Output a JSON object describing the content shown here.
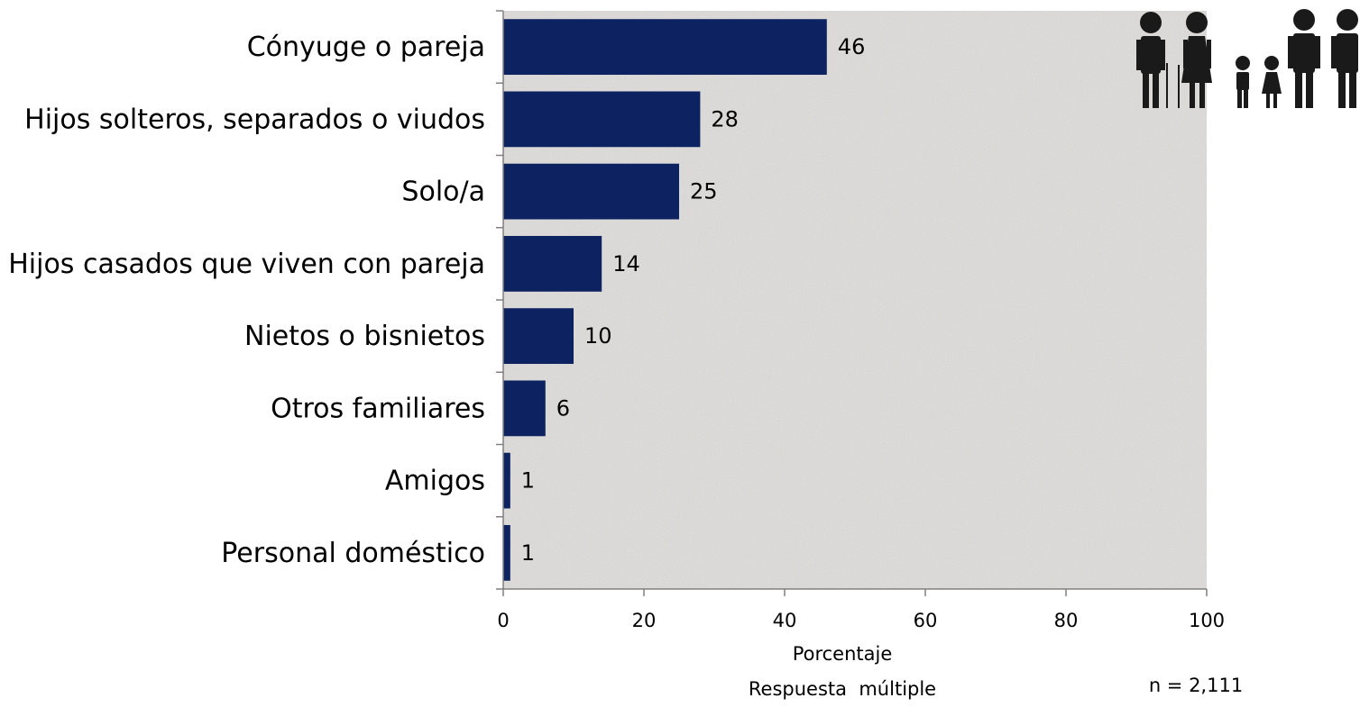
{
  "chart_data": {
    "type": "bar",
    "orientation": "horizontal",
    "categories": [
      "Cónyuge o pareja",
      "Hijos solteros, separados o viudos",
      "Solo/a",
      "Hijos casados que viven con pareja",
      "Nietos o bisnietos",
      "Otros familiares",
      "Amigos",
      "Personal doméstico"
    ],
    "values": [
      46,
      28,
      25,
      14,
      10,
      6,
      1,
      1
    ],
    "xlabel": "Porcentaje",
    "xlabel_note": "Respuesta  múltiple",
    "xlim": [
      0,
      100
    ],
    "xticks": [
      0,
      20,
      40,
      60,
      80,
      100
    ],
    "sample_note": "n = 2,111",
    "grid": false,
    "legend": "none",
    "bar_color": "#0d2260",
    "plot_background": "#e3e1de",
    "decoration": "family-silhouettes-icon"
  }
}
